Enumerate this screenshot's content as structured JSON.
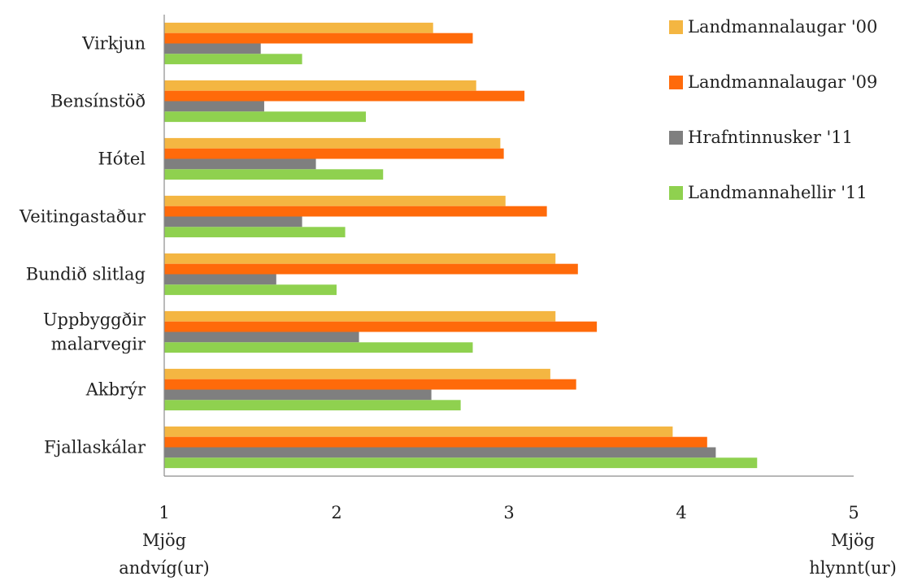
{
  "chart_data": {
    "type": "bar",
    "orientation": "horizontal",
    "categories": [
      "Virkjun",
      "Bensínstöð",
      "Hótel",
      "Veitingastaður",
      "Bundið slitlag",
      "Uppbyggðir malarvegir",
      "Akbrýr",
      "Fjallaskálar"
    ],
    "category_lines": [
      [
        "Virkjun"
      ],
      [
        "Bensínstöð"
      ],
      [
        "Hótel"
      ],
      [
        "Veitingastaður"
      ],
      [
        "Bundið slitlag"
      ],
      [
        "Uppbyggðir",
        "malarvegir"
      ],
      [
        "Akbrýr"
      ],
      [
        "Fjallaskálar"
      ]
    ],
    "series": [
      {
        "name": "Landmannalaugar '00",
        "color": "#F4B642",
        "values": [
          2.56,
          2.81,
          2.95,
          2.98,
          3.27,
          3.27,
          3.24,
          3.95
        ]
      },
      {
        "name": "Landmannalaugar '09",
        "color": "#FF6A0A",
        "values": [
          2.79,
          3.09,
          2.97,
          3.22,
          3.4,
          3.51,
          3.39,
          4.15
        ]
      },
      {
        "name": "Hrafntinnusker '11",
        "color": "#7F7F7F",
        "values": [
          1.56,
          1.58,
          1.88,
          1.8,
          1.65,
          2.13,
          2.55,
          4.2
        ]
      },
      {
        "name": "Landmannahellir '11",
        "color": "#8FD14F",
        "values": [
          1.8,
          2.17,
          2.27,
          2.05,
          2.0,
          2.79,
          2.72,
          4.44
        ]
      }
    ],
    "xlim": [
      1,
      5
    ],
    "xticks": [
      1,
      2,
      3,
      4,
      5
    ],
    "axis_notes": {
      "left": [
        "Mjög",
        "andvíg(ur)"
      ],
      "right": [
        "Mjög",
        "hlynnt(ur)"
      ]
    },
    "legend_position": "top-right",
    "grid": false
  }
}
